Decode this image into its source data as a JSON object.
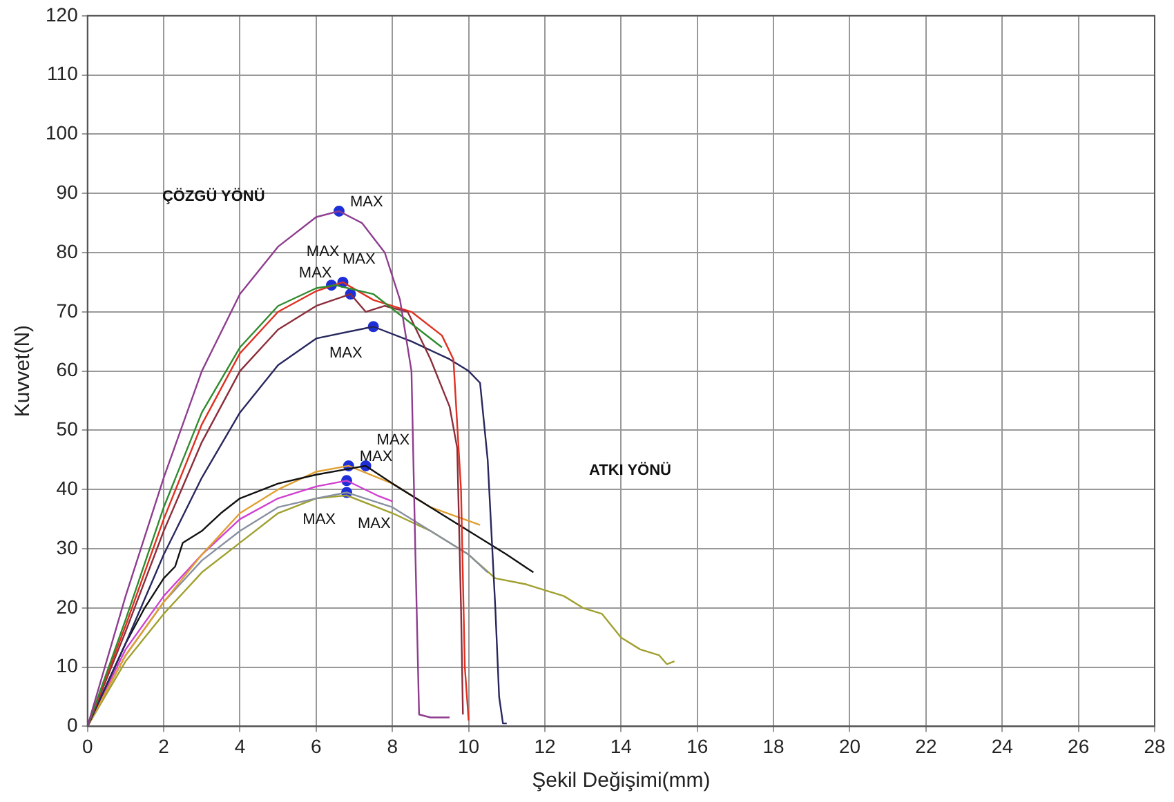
{
  "chart_data": {
    "type": "line",
    "xlabel": "Şekil Değişimi(mm)",
    "ylabel": "Kuvvet(N)",
    "xlim": [
      0,
      28
    ],
    "xticks": [
      0,
      2,
      4,
      6,
      8,
      10,
      12,
      14,
      16,
      18,
      20,
      22,
      24,
      26,
      28
    ],
    "ylim": [
      0,
      120
    ],
    "yticks": [
      0,
      10,
      20,
      30,
      40,
      50,
      60,
      70,
      80,
      90,
      100,
      110,
      120
    ],
    "grid": true,
    "legend": false,
    "marker": "none",
    "line_style": "solid",
    "series": [
      {
        "color": "#8e3d8e",
        "x": [
          0,
          1,
          2,
          3,
          4,
          5,
          6,
          6.6,
          7.2,
          7.8,
          8.2,
          8.5,
          8.6,
          8.7,
          9.0,
          9.5
        ],
        "values": [
          0,
          22,
          42,
          60,
          73,
          81,
          86,
          87,
          85,
          80,
          72,
          60,
          30,
          2,
          1.5,
          1.5
        ]
      },
      {
        "color": "#2e8b2e",
        "x": [
          0,
          1,
          2,
          3,
          4,
          5,
          6,
          6.5,
          7.5,
          8.5,
          9.3
        ],
        "values": [
          0,
          18,
          37,
          53,
          64,
          71,
          74,
          74.5,
          73,
          68,
          64
        ]
      },
      {
        "color": "#e03020",
        "x": [
          0,
          1,
          2,
          3,
          4,
          5,
          6,
          6.7,
          7.5,
          8.5,
          9.3,
          9.6,
          9.8,
          9.9,
          10.0
        ],
        "values": [
          0,
          17,
          35,
          51,
          63,
          70,
          73.5,
          75,
          72,
          70,
          66,
          62,
          40,
          10,
          1
        ]
      },
      {
        "color": "#8b2d3a",
        "x": [
          0,
          1,
          2,
          3,
          4,
          5,
          6,
          6.9,
          7.3,
          7.8,
          8.4,
          9.0,
          9.5,
          9.7,
          9.8,
          9.85
        ],
        "values": [
          0,
          16,
          33,
          48,
          60,
          67,
          71,
          73,
          70,
          71,
          70,
          62,
          54,
          47,
          20,
          2
        ]
      },
      {
        "color": "#27275e",
        "x": [
          0,
          1,
          2,
          3,
          4,
          5,
          6,
          7.5,
          8.5,
          9.5,
          10.0,
          10.3,
          10.5,
          10.7,
          10.8,
          10.9,
          11.0
        ],
        "values": [
          0,
          14,
          29,
          42,
          53,
          61,
          65.5,
          67.5,
          65,
          62,
          60,
          58,
          45,
          20,
          5,
          0.5,
          0.5
        ]
      },
      {
        "color": "#111111",
        "x": [
          0,
          1,
          1.5,
          2,
          2.3,
          2.5,
          3,
          3.5,
          4,
          5,
          6,
          7.3,
          8,
          9,
          10,
          11,
          11.7
        ],
        "values": [
          0,
          14,
          20,
          25,
          27,
          31,
          33,
          36,
          38.5,
          41,
          42.5,
          44,
          41,
          37,
          33,
          29,
          26
        ]
      },
      {
        "color": "#e0a030",
        "x": [
          0,
          1,
          2,
          3,
          4,
          5,
          6,
          6.85,
          8,
          9,
          10.3
        ],
        "values": [
          0,
          12,
          21,
          29,
          36,
          40,
          43,
          44,
          41,
          37,
          34
        ]
      },
      {
        "color": "#d040d0",
        "x": [
          0,
          1,
          2,
          3,
          4,
          5,
          6,
          6.8,
          7.6,
          8.0
        ],
        "values": [
          0,
          13,
          22,
          29,
          35,
          38.5,
          40.5,
          41.5,
          39,
          38
        ]
      },
      {
        "color": "#8890a0",
        "x": [
          0,
          1,
          2,
          3,
          4,
          5,
          6,
          6.8,
          8,
          9,
          10,
          10.5
        ],
        "values": [
          0,
          12,
          21,
          28,
          33,
          37,
          38.5,
          39.5,
          37,
          33,
          29,
          26
        ]
      },
      {
        "color": "#a0a030",
        "x": [
          0,
          1,
          2,
          3,
          4,
          5,
          6,
          6.8,
          8,
          9,
          10,
          10.7,
          11.5,
          12,
          12.5,
          13,
          13.5,
          14,
          14.5,
          15,
          15.2,
          15.4
        ],
        "values": [
          0,
          11,
          19,
          26,
          31,
          36,
          38.5,
          39,
          36,
          33,
          29,
          25,
          24,
          23,
          22,
          20,
          19,
          15,
          13,
          12,
          10.5,
          11
        ]
      },
      {
        "type": "scatter",
        "color": "#1f2fd8",
        "marker": "circle",
        "x": [
          6.6,
          6.4,
          6.7,
          6.9,
          7.5,
          6.85,
          7.3,
          6.8,
          6.8
        ],
        "values": [
          87,
          74.5,
          75,
          73,
          67.5,
          44,
          44,
          41.5,
          39.5
        ]
      }
    ],
    "annotations": [
      {
        "text": "MAX",
        "x": 6.6,
        "y": 87
      },
      {
        "text": "MAX",
        "x": 6.7,
        "y": 75
      },
      {
        "text": "MAX",
        "x": 6.9,
        "y": 73
      },
      {
        "text": "MAX",
        "x": 7.5,
        "y": 67.5
      },
      {
        "text": "MAX",
        "x": 6.85,
        "y": 44
      },
      {
        "text": "MAX",
        "x": 7.3,
        "y": 44
      },
      {
        "text": "MAX",
        "x": 6.8,
        "y": 41.5
      },
      {
        "text": "MAX",
        "x": 6.8,
        "y": 39.5
      },
      {
        "text": "MAX",
        "x": 6.4,
        "y": 74.5
      },
      "ÇÖZGÜ YÖNÜ",
      "ATKI YÖNÜ"
    ]
  }
}
